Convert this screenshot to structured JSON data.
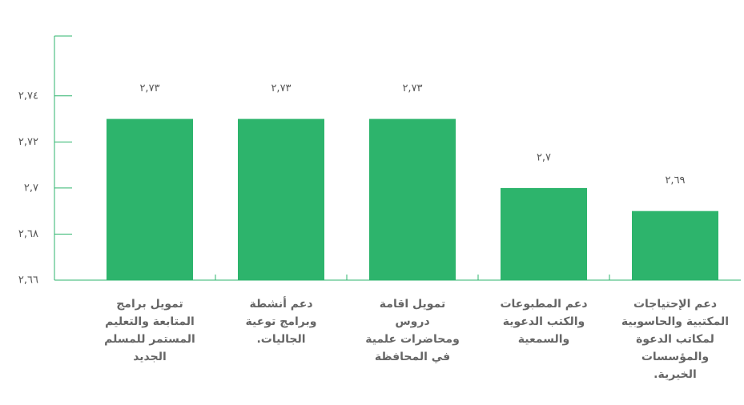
{
  "chart_data": {
    "type": "bar",
    "categories": [
      [
        "تمويل برامج",
        "المتابعة والتعليم",
        "المستمر للمسلم",
        "الجديد"
      ],
      [
        "دعم أنشطة",
        "وبرامج توعية",
        "الجاليات."
      ],
      [
        "تمويل اقامة",
        "دروس",
        "ومحاضرات علمية",
        "في المحافظة"
      ],
      [
        "دعم المطبوعات",
        "والكتب الدعوية",
        "والسمعية"
      ],
      [
        "دعم الإحتياجات",
        "المكتبية والحاسوبية",
        "لمكاتب الدعوة",
        "والمؤسسات",
        "الخيرية."
      ]
    ],
    "values": [
      2.73,
      2.73,
      2.73,
      2.7,
      2.69
    ],
    "value_labels": [
      "٢,٧٣",
      "٢,٧٣",
      "٢,٧٣",
      "٢,٧",
      "٢,٦٩"
    ],
    "color": "#2db46c",
    "ylim": [
      2.66,
      2.766
    ],
    "yticks": [
      {
        "value": 2.66,
        "label": "٢,٦٦"
      },
      {
        "value": 2.68,
        "label": "٢,٦٨"
      },
      {
        "value": 2.7,
        "label": "٢,٧"
      },
      {
        "value": 2.72,
        "label": "٢,٧٢"
      },
      {
        "value": 2.74,
        "label": "٢,٧٤"
      }
    ]
  }
}
